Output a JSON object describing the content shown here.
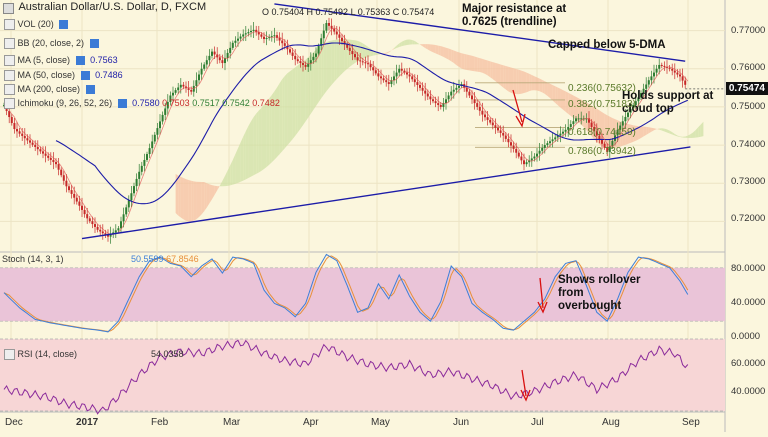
{
  "header": {
    "title": "Australian Dollar/U.S. Dollar, D, FXCM",
    "ohlc": "O 0.75404  H 0.75492  L 0.75363  C 0.75474"
  },
  "indicators": [
    {
      "name": "VOL (20)"
    },
    {
      "name": "BB (20, close, 2)"
    },
    {
      "name": "MA (5, close)",
      "value": "0.7563"
    },
    {
      "name": "MA (50, close)",
      "value": "0.7486"
    },
    {
      "name": "MA (200, close)"
    },
    {
      "name": "Ichimoku (9, 26, 52, 26)",
      "values": [
        "0.7580",
        "0.7503",
        "0.7517",
        "0.7542",
        "0.7482"
      ]
    }
  ],
  "annotations": {
    "resistance": "Major resistance at 0.7625 (trendline)",
    "capped": "Capped below 5-DMA",
    "support": "Holds support at cloud top",
    "stoch_note": "Shows rollover from overbought"
  },
  "colors": {
    "background": "#fbf6dd",
    "candle_up": "#2e7d32",
    "candle_down": "#c62828",
    "trendline": "#1c1ca8",
    "ma5": "#e05050",
    "ma50": "#1c1ca8",
    "stoch_band": "#eac4d8",
    "rsi_band": "#f7d6d6",
    "stoch_k": "#3d7fd8",
    "stoch_d": "#e8903a",
    "rsi_line": "#8b2b9b",
    "arrow": "#d81010"
  },
  "chart_data": [
    {
      "type": "candlestick",
      "title": "Australian Dollar/U.S. Dollar, D, FXCM",
      "x_ticks": [
        "Dec",
        "2017",
        "Feb",
        "Mar",
        "Apr",
        "May",
        "Jun",
        "Jul",
        "Aug",
        "Sep"
      ],
      "y_ticks": [
        "0.72000",
        "0.73000",
        "0.74000",
        "0.75000",
        "0.76000",
        "0.77000"
      ],
      "ylim": [
        0.7125,
        0.7775
      ],
      "last_price": "0.75474",
      "close_path": [
        [
          0,
          0.7505
        ],
        [
          4,
          0.7442
        ],
        [
          8,
          0.7418
        ],
        [
          12,
          0.7395
        ],
        [
          16,
          0.7372
        ],
        [
          20,
          0.735
        ],
        [
          24,
          0.7292
        ],
        [
          28,
          0.7252
        ],
        [
          32,
          0.7208
        ],
        [
          36,
          0.7178
        ],
        [
          40,
          0.716
        ],
        [
          44,
          0.7182
        ],
        [
          48,
          0.7255
        ],
        [
          52,
          0.733
        ],
        [
          56,
          0.7392
        ],
        [
          60,
          0.7462
        ],
        [
          64,
          0.753
        ],
        [
          68,
          0.7558
        ],
        [
          72,
          0.754
        ],
        [
          76,
          0.76
        ],
        [
          80,
          0.7645
        ],
        [
          84,
          0.7615
        ],
        [
          88,
          0.7668
        ],
        [
          92,
          0.769
        ],
        [
          96,
          0.7702
        ],
        [
          100,
          0.7678
        ],
        [
          104,
          0.7688
        ],
        [
          108,
          0.766
        ],
        [
          112,
          0.7625
        ],
        [
          116,
          0.7605
        ],
        [
          120,
          0.764
        ],
        [
          124,
          0.772
        ],
        [
          128,
          0.769
        ],
        [
          132,
          0.7655
        ],
        [
          136,
          0.7622
        ],
        [
          140,
          0.7612
        ],
        [
          144,
          0.758
        ],
        [
          148,
          0.756
        ],
        [
          152,
          0.76
        ],
        [
          156,
          0.758
        ],
        [
          160,
          0.755
        ],
        [
          164,
          0.752
        ],
        [
          168,
          0.75
        ],
        [
          172,
          0.754
        ],
        [
          176,
          0.756
        ],
        [
          180,
          0.752
        ],
        [
          184,
          0.748
        ],
        [
          188,
          0.7452
        ],
        [
          192,
          0.7425
        ],
        [
          196,
          0.739
        ],
        [
          200,
          0.735
        ],
        [
          204,
          0.737
        ],
        [
          208,
          0.74
        ],
        [
          212,
          0.742
        ],
        [
          216,
          0.744
        ],
        [
          220,
          0.747
        ],
        [
          224,
          0.747
        ],
        [
          228,
          0.7425
        ],
        [
          232,
          0.7382
        ],
        [
          236,
          0.744
        ],
        [
          240,
          0.7485
        ],
        [
          244,
          0.7525
        ],
        [
          248,
          0.757
        ],
        [
          252,
          0.761
        ],
        [
          256,
          0.76
        ],
        [
          260,
          0.758
        ],
        [
          263,
          0.7547
        ]
      ],
      "fib_levels": [
        {
          "label": "0.236(0.75632)",
          "value": 0.75632
        },
        {
          "label": "0.382(0.75183)",
          "value": 0.75183
        },
        {
          "label": "0.618(0.74459)",
          "value": 0.74459
        },
        {
          "label": "0.786(0.73942)",
          "value": 0.73942
        }
      ],
      "trendlines": [
        {
          "from": [
            104,
            0.777
          ],
          "to": [
            262,
            0.762
          ]
        },
        {
          "from": [
            30,
            0.7155
          ],
          "to": [
            264,
            0.7395
          ]
        }
      ]
    },
    {
      "type": "line",
      "title": "Stoch (14, 3, 1)",
      "values_label": [
        "50.5599",
        "67.8546"
      ],
      "y_ticks": [
        "0.0000",
        "40.0000",
        "80.0000"
      ],
      "ylim": [
        0,
        100
      ],
      "band": [
        20,
        80
      ],
      "k_path": [
        [
          0,
          52
        ],
        [
          6,
          35
        ],
        [
          12,
          22
        ],
        [
          18,
          18
        ],
        [
          24,
          15
        ],
        [
          30,
          12
        ],
        [
          36,
          10
        ],
        [
          40,
          8
        ],
        [
          44,
          20
        ],
        [
          48,
          45
        ],
        [
          52,
          70
        ],
        [
          56,
          88
        ],
        [
          60,
          92
        ],
        [
          64,
          85
        ],
        [
          68,
          82
        ],
        [
          72,
          70
        ],
        [
          76,
          82
        ],
        [
          80,
          90
        ],
        [
          84,
          74
        ],
        [
          88,
          92
        ],
        [
          92,
          90
        ],
        [
          96,
          85
        ],
        [
          100,
          55
        ],
        [
          104,
          40
        ],
        [
          108,
          35
        ],
        [
          112,
          25
        ],
        [
          116,
          40
        ],
        [
          120,
          75
        ],
        [
          124,
          95
        ],
        [
          128,
          88
        ],
        [
          132,
          60
        ],
        [
          136,
          30
        ],
        [
          140,
          35
        ],
        [
          144,
          62
        ],
        [
          148,
          45
        ],
        [
          152,
          72
        ],
        [
          156,
          48
        ],
        [
          160,
          30
        ],
        [
          164,
          20
        ],
        [
          168,
          42
        ],
        [
          172,
          82
        ],
        [
          176,
          70
        ],
        [
          180,
          40
        ],
        [
          184,
          30
        ],
        [
          188,
          22
        ],
        [
          192,
          12
        ],
        [
          196,
          10
        ],
        [
          200,
          20
        ],
        [
          204,
          30
        ],
        [
          208,
          45
        ],
        [
          212,
          70
        ],
        [
          216,
          85
        ],
        [
          220,
          88
        ],
        [
          224,
          60
        ],
        [
          228,
          30
        ],
        [
          232,
          20
        ],
        [
          236,
          45
        ],
        [
          240,
          75
        ],
        [
          244,
          92
        ],
        [
          248,
          90
        ],
        [
          252,
          85
        ],
        [
          256,
          80
        ],
        [
          260,
          65
        ],
        [
          263,
          50
        ]
      ]
    },
    {
      "type": "line",
      "title": "RSI (14, close)",
      "values_label": [
        "54.0358"
      ],
      "y_ticks": [
        "40.0000",
        "60.0000"
      ],
      "ylim": [
        25,
        75
      ],
      "band": [
        30,
        70
      ],
      "rsi_path": [
        [
          0,
          42
        ],
        [
          8,
          40
        ],
        [
          16,
          38
        ],
        [
          24,
          34
        ],
        [
          32,
          32
        ],
        [
          38,
          30
        ],
        [
          44,
          38
        ],
        [
          52,
          50
        ],
        [
          60,
          60
        ],
        [
          68,
          63
        ],
        [
          76,
          62
        ],
        [
          84,
          66
        ],
        [
          92,
          68
        ],
        [
          100,
          62
        ],
        [
          108,
          58
        ],
        [
          116,
          56
        ],
        [
          124,
          66
        ],
        [
          132,
          60
        ],
        [
          140,
          56
        ],
        [
          148,
          54
        ],
        [
          156,
          56
        ],
        [
          164,
          50
        ],
        [
          172,
          52
        ],
        [
          180,
          48
        ],
        [
          188,
          44
        ],
        [
          196,
          38
        ],
        [
          204,
          41
        ],
        [
          212,
          46
        ],
        [
          220,
          50
        ],
        [
          228,
          42
        ],
        [
          236,
          48
        ],
        [
          244,
          58
        ],
        [
          252,
          64
        ],
        [
          258,
          62
        ],
        [
          263,
          54
        ]
      ]
    }
  ]
}
